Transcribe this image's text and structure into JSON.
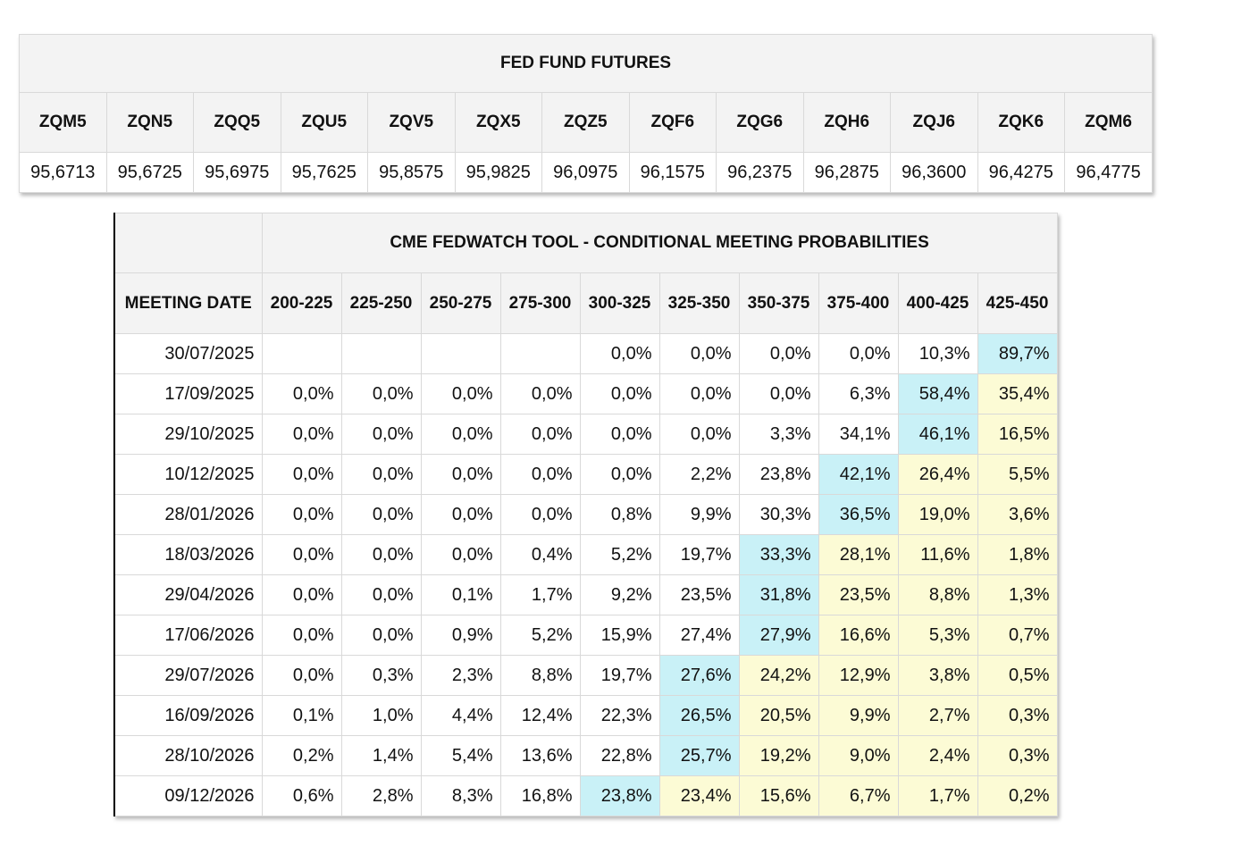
{
  "futures": {
    "title": "FED FUND FUTURES",
    "contracts": [
      {
        "code": "ZQM5",
        "price": "95,6713"
      },
      {
        "code": "ZQN5",
        "price": "95,6725"
      },
      {
        "code": "ZQQ5",
        "price": "95,6975"
      },
      {
        "code": "ZQU5",
        "price": "95,7625"
      },
      {
        "code": "ZQV5",
        "price": "95,8575"
      },
      {
        "code": "ZQX5",
        "price": "95,9825"
      },
      {
        "code": "ZQZ5",
        "price": "96,0975"
      },
      {
        "code": "ZQF6",
        "price": "96,1575"
      },
      {
        "code": "ZQG6",
        "price": "96,2375"
      },
      {
        "code": "ZQH6",
        "price": "96,2875"
      },
      {
        "code": "ZQJ6",
        "price": "96,3600"
      },
      {
        "code": "ZQK6",
        "price": "96,4275"
      },
      {
        "code": "ZQM6",
        "price": "96,4775"
      }
    ]
  },
  "fedwatch": {
    "title": "CME FEDWATCH TOOL - CONDITIONAL MEETING PROBABILITIES",
    "date_header": "MEETING DATE",
    "ranges": [
      "200-225",
      "225-250",
      "250-275",
      "275-300",
      "300-325",
      "325-350",
      "350-375",
      "375-400",
      "400-425",
      "425-450"
    ],
    "colors": {
      "max": "#c9f1f7",
      "above_max": "#fcfbd5"
    },
    "rows": [
      {
        "date": "30/07/2025",
        "values": [
          "",
          "",
          "",
          "",
          "0,0%",
          "0,0%",
          "0,0%",
          "0,0%",
          "10,3%",
          "89,7%"
        ],
        "max_index": 9
      },
      {
        "date": "17/09/2025",
        "values": [
          "0,0%",
          "0,0%",
          "0,0%",
          "0,0%",
          "0,0%",
          "0,0%",
          "0,0%",
          "6,3%",
          "58,4%",
          "35,4%"
        ],
        "max_index": 8
      },
      {
        "date": "29/10/2025",
        "values": [
          "0,0%",
          "0,0%",
          "0,0%",
          "0,0%",
          "0,0%",
          "0,0%",
          "3,3%",
          "34,1%",
          "46,1%",
          "16,5%"
        ],
        "max_index": 8
      },
      {
        "date": "10/12/2025",
        "values": [
          "0,0%",
          "0,0%",
          "0,0%",
          "0,0%",
          "0,0%",
          "2,2%",
          "23,8%",
          "42,1%",
          "26,4%",
          "5,5%"
        ],
        "max_index": 7
      },
      {
        "date": "28/01/2026",
        "values": [
          "0,0%",
          "0,0%",
          "0,0%",
          "0,0%",
          "0,8%",
          "9,9%",
          "30,3%",
          "36,5%",
          "19,0%",
          "3,6%"
        ],
        "max_index": 7
      },
      {
        "date": "18/03/2026",
        "values": [
          "0,0%",
          "0,0%",
          "0,0%",
          "0,4%",
          "5,2%",
          "19,7%",
          "33,3%",
          "28,1%",
          "11,6%",
          "1,8%"
        ],
        "max_index": 6
      },
      {
        "date": "29/04/2026",
        "values": [
          "0,0%",
          "0,0%",
          "0,1%",
          "1,7%",
          "9,2%",
          "23,5%",
          "31,8%",
          "23,5%",
          "8,8%",
          "1,3%"
        ],
        "max_index": 6
      },
      {
        "date": "17/06/2026",
        "values": [
          "0,0%",
          "0,0%",
          "0,9%",
          "5,2%",
          "15,9%",
          "27,4%",
          "27,9%",
          "16,6%",
          "5,3%",
          "0,7%"
        ],
        "max_index": 6
      },
      {
        "date": "29/07/2026",
        "values": [
          "0,0%",
          "0,3%",
          "2,3%",
          "8,8%",
          "19,7%",
          "27,6%",
          "24,2%",
          "12,9%",
          "3,8%",
          "0,5%"
        ],
        "max_index": 5
      },
      {
        "date": "16/09/2026",
        "values": [
          "0,1%",
          "1,0%",
          "4,4%",
          "12,4%",
          "22,3%",
          "26,5%",
          "20,5%",
          "9,9%",
          "2,7%",
          "0,3%"
        ],
        "max_index": 5
      },
      {
        "date": "28/10/2026",
        "values": [
          "0,2%",
          "1,4%",
          "5,4%",
          "13,6%",
          "22,8%",
          "25,7%",
          "19,2%",
          "9,0%",
          "2,4%",
          "0,3%"
        ],
        "max_index": 5
      },
      {
        "date": "09/12/2026",
        "values": [
          "0,6%",
          "2,8%",
          "8,3%",
          "16,8%",
          "23,8%",
          "23,4%",
          "15,6%",
          "6,7%",
          "1,7%",
          "0,2%"
        ],
        "max_index": 4
      }
    ]
  }
}
